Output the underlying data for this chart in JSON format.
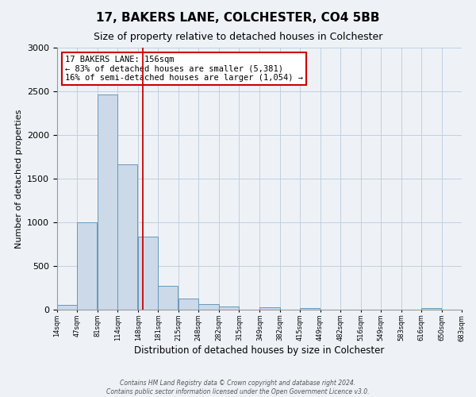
{
  "title_line1": "17, BAKERS LANE, COLCHESTER, CO4 5BB",
  "title_line2": "Size of property relative to detached houses in Colchester",
  "xlabel": "Distribution of detached houses by size in Colchester",
  "ylabel": "Number of detached properties",
  "bar_left_edges": [
    14,
    47,
    81,
    114,
    148,
    181,
    215,
    248,
    282,
    315,
    349,
    382,
    415,
    449,
    482,
    516,
    549,
    583,
    616,
    650
  ],
  "bar_heights": [
    55,
    1000,
    2460,
    1660,
    840,
    270,
    130,
    60,
    35,
    0,
    30,
    0,
    20,
    0,
    0,
    0,
    0,
    0,
    15,
    0
  ],
  "bin_width": 33,
  "xtick_labels": [
    "14sqm",
    "47sqm",
    "81sqm",
    "114sqm",
    "148sqm",
    "181sqm",
    "215sqm",
    "248sqm",
    "282sqm",
    "315sqm",
    "349sqm",
    "382sqm",
    "415sqm",
    "449sqm",
    "482sqm",
    "516sqm",
    "549sqm",
    "583sqm",
    "616sqm",
    "650sqm",
    "683sqm"
  ],
  "bar_color": "#ccd9e8",
  "bar_edge_color": "#6699bb",
  "vline_x": 156,
  "vline_color": "#cc0000",
  "ylim": [
    0,
    3000
  ],
  "yticks": [
    0,
    500,
    1000,
    1500,
    2000,
    2500,
    3000
  ],
  "annotation_title": "17 BAKERS LANE: 156sqm",
  "annotation_line2": "← 83% of detached houses are smaller (5,381)",
  "annotation_line3": "16% of semi-detached houses are larger (1,054) →",
  "annotation_box_color": "#cc0000",
  "footer_line1": "Contains HM Land Registry data © Crown copyright and database right 2024.",
  "footer_line2": "Contains public sector information licensed under the Open Government Licence v3.0.",
  "background_color": "#eef2f7",
  "grid_color": "#c0cfe0"
}
